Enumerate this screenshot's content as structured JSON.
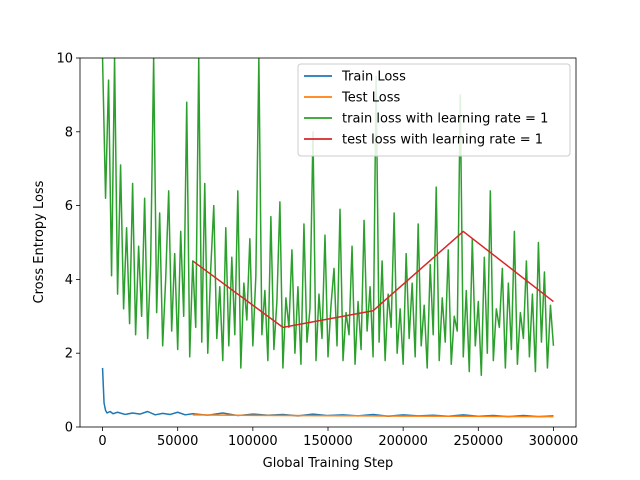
{
  "chart_data": {
    "type": "line",
    "xlabel": "Global Training Step",
    "ylabel": "Cross Entropy Loss",
    "xlim": [
      -15000,
      315000
    ],
    "ylim": [
      0,
      10
    ],
    "x_ticks": [
      0,
      50000,
      100000,
      150000,
      200000,
      250000,
      300000
    ],
    "x_tick_labels": [
      "0",
      "50000",
      "100000",
      "150000",
      "200000",
      "250000",
      "300000"
    ],
    "y_ticks": [
      0,
      2,
      4,
      6,
      8,
      10
    ],
    "y_tick_labels": [
      "0",
      "2",
      "4",
      "6",
      "8",
      "10"
    ],
    "grid": false,
    "legend_position": "top-right",
    "series": [
      {
        "name": "Train Loss",
        "color": "#1f77b4",
        "x": [
          0,
          1000,
          2000,
          3000,
          5000,
          7000,
          10000,
          15000,
          20000,
          25000,
          30000,
          35000,
          40000,
          45000,
          50000,
          55000,
          60000,
          70000,
          80000,
          90000,
          100000,
          110000,
          120000,
          130000,
          140000,
          150000,
          160000,
          170000,
          180000,
          190000,
          200000,
          210000,
          220000,
          230000,
          240000,
          250000,
          260000,
          270000,
          280000,
          290000,
          300000
        ],
        "y": [
          1.6,
          0.65,
          0.45,
          0.38,
          0.42,
          0.36,
          0.4,
          0.34,
          0.38,
          0.35,
          0.42,
          0.33,
          0.37,
          0.34,
          0.4,
          0.33,
          0.36,
          0.32,
          0.38,
          0.31,
          0.35,
          0.32,
          0.34,
          0.3,
          0.35,
          0.31,
          0.33,
          0.3,
          0.34,
          0.29,
          0.33,
          0.3,
          0.32,
          0.29,
          0.33,
          0.29,
          0.31,
          0.28,
          0.31,
          0.28,
          0.3
        ]
      },
      {
        "name": "Test Loss",
        "color": "#ff7f0e",
        "x": [
          60000,
          120000,
          180000,
          240000,
          300000
        ],
        "y": [
          0.33,
          0.31,
          0.3,
          0.29,
          0.28
        ]
      },
      {
        "name": "train loss with learning rate = 1",
        "color": "#2ca02c",
        "x": [
          0,
          2000,
          4000,
          6000,
          8000,
          10000,
          12000,
          14000,
          16000,
          18000,
          20000,
          22000,
          24000,
          26000,
          28000,
          30000,
          32000,
          34000,
          36000,
          38000,
          40000,
          42000,
          44000,
          46000,
          48000,
          50000,
          52000,
          54000,
          56000,
          58000,
          60000,
          62000,
          64000,
          66000,
          68000,
          70000,
          72000,
          74000,
          76000,
          78000,
          80000,
          82000,
          84000,
          86000,
          88000,
          90000,
          92000,
          94000,
          96000,
          98000,
          100000,
          102000,
          104000,
          106000,
          108000,
          110000,
          112000,
          114000,
          116000,
          118000,
          120000,
          122000,
          124000,
          126000,
          128000,
          130000,
          132000,
          134000,
          136000,
          138000,
          140000,
          142000,
          144000,
          146000,
          148000,
          150000,
          152000,
          154000,
          156000,
          158000,
          160000,
          162000,
          164000,
          166000,
          168000,
          170000,
          172000,
          174000,
          176000,
          178000,
          180000,
          182000,
          184000,
          186000,
          188000,
          190000,
          192000,
          194000,
          196000,
          198000,
          200000,
          202000,
          204000,
          206000,
          208000,
          210000,
          212000,
          214000,
          216000,
          218000,
          220000,
          222000,
          224000,
          226000,
          228000,
          230000,
          232000,
          234000,
          236000,
          238000,
          240000,
          242000,
          244000,
          246000,
          248000,
          250000,
          252000,
          254000,
          256000,
          258000,
          260000,
          262000,
          264000,
          266000,
          268000,
          270000,
          272000,
          274000,
          276000,
          278000,
          280000,
          282000,
          284000,
          286000,
          288000,
          290000,
          292000,
          294000,
          296000,
          298000,
          300000
        ],
        "y": [
          10,
          6.2,
          9.4,
          4.1,
          10,
          3.6,
          7.1,
          3.2,
          5.4,
          2.8,
          6.6,
          2.5,
          4.9,
          3.0,
          6.2,
          2.4,
          4.4,
          10,
          3.1,
          5.8,
          2.2,
          4.0,
          6.4,
          2.6,
          4.7,
          2.1,
          5.3,
          3.0,
          8.8,
          1.9,
          4.5,
          2.7,
          10,
          2.3,
          6.6,
          2.0,
          4.3,
          6.0,
          2.4,
          3.8,
          1.8,
          5.4,
          2.2,
          4.6,
          2.5,
          6.4,
          1.6,
          3.9,
          2.9,
          5.1,
          2.2,
          4.1,
          10,
          2.5,
          3.7,
          1.8,
          5.7,
          2.1,
          3.4,
          6.1,
          1.6,
          3.5,
          2.7,
          4.8,
          2.0,
          3.8,
          1.7,
          5.5,
          2.3,
          3.2,
          8.0,
          1.8,
          3.6,
          2.4,
          5.2,
          1.9,
          3.3,
          4.3,
          2.2,
          5.9,
          1.8,
          3.1,
          2.5,
          4.9,
          1.7,
          3.4,
          2.1,
          5.6,
          2.6,
          3.8,
          1.9,
          9.5,
          2.3,
          4.5,
          1.8,
          3.6,
          2.7,
          5.8,
          2.0,
          3.2,
          1.7,
          4.7,
          2.4,
          3.9,
          1.9,
          5.5,
          2.2,
          3.3,
          1.6,
          4.4,
          2.5,
          6.5,
          1.8,
          3.5,
          2.3,
          4.8,
          1.7,
          3.0,
          2.6,
          9.0,
          1.9,
          3.7,
          1.5,
          5.1,
          2.2,
          3.4,
          1.4,
          4.6,
          2.0,
          6.4,
          1.8,
          3.2,
          2.7,
          4.3,
          1.6,
          3.9,
          2.1,
          5.3,
          1.7,
          3.1,
          2.4,
          4.5,
          1.9,
          3.6,
          1.5,
          5.0,
          2.3,
          4.2,
          1.6,
          3.3,
          2.2
        ]
      },
      {
        "name": "test loss with learning rate = 1",
        "color": "#d62728",
        "x": [
          60000,
          120000,
          180000,
          240000,
          300000
        ],
        "y": [
          4.5,
          2.7,
          3.15,
          5.3,
          3.4
        ]
      }
    ]
  }
}
